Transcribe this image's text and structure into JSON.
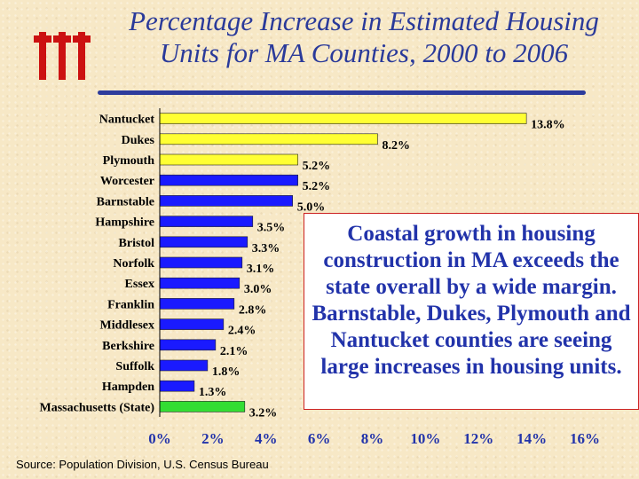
{
  "title": {
    "line1": "Percentage Increase in Estimated Housing",
    "line2": "Units for MA Counties, 2000 to 2006"
  },
  "logo_icon": "three-t-logo-icon",
  "callout_text": "Coastal growth in housing construction in MA exceeds the state overall by a wide margin. Barnstable, Dukes, Plymouth and Nantucket counties are seeing large increases in housing units.",
  "source": "Source: Population Division, U.S. Census Bureau",
  "colors": {
    "highlight": "#ffff33",
    "standard": "#1a1aff",
    "state": "#33dd33",
    "title": "#2a3a9a",
    "logo": "#cc1111"
  },
  "chart_data": {
    "type": "bar",
    "orientation": "horizontal",
    "title": "Percentage Increase in Estimated Housing Units for MA Counties, 2000 to 2006",
    "xlabel": "",
    "ylabel": "",
    "xlim": [
      0,
      16
    ],
    "x_ticks": [
      "0%",
      "2%",
      "4%",
      "6%",
      "8%",
      "10%",
      "12%",
      "14%",
      "16%"
    ],
    "grid": false,
    "legend": "none",
    "categories": [
      "Nantucket",
      "Dukes",
      "Plymouth",
      "Worcester",
      "Barnstable",
      "Hampshire",
      "Bristol",
      "Norfolk",
      "Essex",
      "Franklin",
      "Middlesex",
      "Berkshire",
      "Suffolk",
      "Hampden",
      "Massachusetts (State)"
    ],
    "values": [
      13.8,
      8.2,
      5.2,
      5.2,
      5.0,
      3.5,
      3.3,
      3.1,
      3.0,
      2.8,
      2.4,
      2.1,
      1.8,
      1.3,
      3.2
    ],
    "value_labels": [
      "13.8%",
      "8.2%",
      "5.2%",
      "5.2%",
      "5.0%",
      "3.5%",
      "3.3%",
      "3.1%",
      "3.0%",
      "2.8%",
      "2.4%",
      "2.1%",
      "1.8%",
      "1.3%",
      "3.2%"
    ],
    "bar_colors": [
      "highlight",
      "highlight",
      "highlight",
      "standard",
      "standard",
      "standard",
      "standard",
      "standard",
      "standard",
      "standard",
      "standard",
      "standard",
      "standard",
      "standard",
      "state"
    ]
  }
}
